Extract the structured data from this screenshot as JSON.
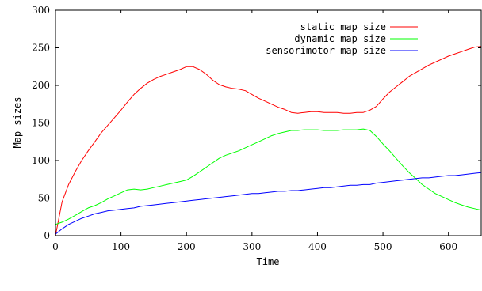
{
  "chart_data": {
    "type": "line",
    "title": "",
    "xlabel": "Time",
    "ylabel": "Map sizes",
    "xlim": [
      0,
      650
    ],
    "ylim": [
      0,
      300
    ],
    "xticks": [
      0,
      100,
      200,
      300,
      400,
      500,
      600
    ],
    "yticks": [
      0,
      50,
      100,
      150,
      200,
      250,
      300
    ],
    "grid": false,
    "legend_position": "top-right",
    "series": [
      {
        "name": "static map size",
        "color": "#ff0000",
        "x": [
          0,
          10,
          20,
          30,
          40,
          50,
          60,
          70,
          80,
          90,
          100,
          110,
          120,
          130,
          140,
          150,
          160,
          170,
          180,
          190,
          200,
          210,
          220,
          230,
          240,
          250,
          260,
          270,
          280,
          290,
          300,
          310,
          320,
          330,
          340,
          350,
          360,
          370,
          380,
          390,
          400,
          410,
          420,
          430,
          440,
          450,
          460,
          470,
          480,
          490,
          500,
          510,
          520,
          530,
          540,
          550,
          560,
          570,
          580,
          590,
          600,
          610,
          620,
          630,
          640,
          650
        ],
        "y": [
          0,
          45,
          68,
          85,
          100,
          113,
          125,
          137,
          147,
          157,
          167,
          178,
          188,
          196,
          203,
          208,
          212,
          215,
          218,
          221,
          225,
          225,
          221,
          215,
          207,
          201,
          198,
          196,
          195,
          193,
          188,
          183,
          179,
          175,
          171,
          168,
          164,
          163,
          164,
          165,
          165,
          164,
          164,
          164,
          163,
          163,
          164,
          164,
          167,
          172,
          182,
          191,
          198,
          205,
          212,
          217,
          222,
          227,
          231,
          235,
          239,
          242,
          245,
          248,
          251,
          252
        ]
      },
      {
        "name": "dynamic map size",
        "color": "#00ff00",
        "x": [
          0,
          10,
          20,
          30,
          40,
          50,
          60,
          70,
          80,
          90,
          100,
          110,
          120,
          130,
          140,
          150,
          160,
          170,
          180,
          190,
          200,
          210,
          220,
          230,
          240,
          250,
          260,
          270,
          280,
          290,
          300,
          310,
          320,
          330,
          340,
          350,
          360,
          370,
          380,
          390,
          400,
          410,
          420,
          430,
          440,
          450,
          460,
          470,
          480,
          490,
          500,
          510,
          520,
          530,
          540,
          550,
          560,
          570,
          580,
          590,
          600,
          610,
          620,
          630,
          640,
          650
        ],
        "y": [
          15,
          18,
          22,
          27,
          32,
          37,
          40,
          44,
          49,
          53,
          57,
          61,
          62,
          61,
          62,
          64,
          66,
          68,
          70,
          72,
          74,
          79,
          85,
          91,
          97,
          103,
          107,
          110,
          113,
          117,
          121,
          125,
          129,
          133,
          136,
          138,
          140,
          140,
          141,
          141,
          141,
          140,
          140,
          140,
          141,
          141,
          141,
          142,
          140,
          132,
          122,
          113,
          103,
          93,
          84,
          76,
          68,
          62,
          56,
          52,
          48,
          44,
          41,
          38,
          36,
          34
        ]
      },
      {
        "name": "sensorimotor map size",
        "color": "#0000ff",
        "x": [
          0,
          10,
          20,
          30,
          40,
          50,
          60,
          70,
          80,
          90,
          100,
          110,
          120,
          130,
          140,
          150,
          160,
          170,
          180,
          190,
          200,
          210,
          220,
          230,
          240,
          250,
          260,
          270,
          280,
          290,
          300,
          310,
          320,
          330,
          340,
          350,
          360,
          370,
          380,
          390,
          400,
          410,
          420,
          430,
          440,
          450,
          460,
          470,
          480,
          490,
          500,
          510,
          520,
          530,
          540,
          550,
          560,
          570,
          580,
          590,
          600,
          610,
          620,
          630,
          640,
          650
        ],
        "y": [
          2,
          9,
          15,
          19,
          23,
          26,
          29,
          31,
          33,
          34,
          35,
          36,
          37,
          39,
          40,
          41,
          42,
          43,
          44,
          45,
          46,
          47,
          48,
          49,
          50,
          51,
          52,
          53,
          54,
          55,
          56,
          56,
          57,
          58,
          59,
          59,
          60,
          60,
          61,
          62,
          63,
          64,
          64,
          65,
          66,
          67,
          67,
          68,
          68,
          70,
          71,
          72,
          73,
          74,
          75,
          76,
          77,
          77,
          78,
          79,
          80,
          80,
          81,
          82,
          83,
          84
        ]
      }
    ]
  }
}
